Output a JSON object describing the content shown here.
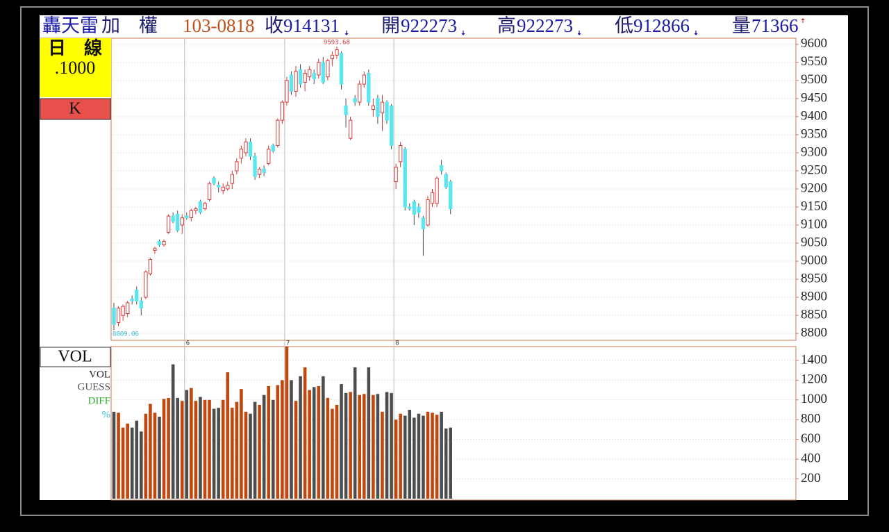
{
  "header": {
    "name": "轟天雷",
    "index": "加　權",
    "date": "103-0818",
    "close_label": "收",
    "close": "914131",
    "open_label": "開",
    "open": "922273",
    "high_label": "高",
    "high": "922273",
    "low_label": "低",
    "low": "912866",
    "volume_label": "量",
    "volume": "71366"
  },
  "side_panel": {
    "period": "日　線",
    "scale": ".1000",
    "mode": "K",
    "vol_title": "VOL",
    "vol_items": [
      "VOL",
      "GUESS",
      "DIFF",
      "%"
    ]
  },
  "chart_data": [
    {
      "type": "candlestick",
      "up_color": "#d63c3c",
      "down_color": "#5ce6f0",
      "categories": [
        null,
        null,
        null,
        null,
        null,
        null,
        null,
        null,
        null,
        null,
        null,
        null,
        null,
        null,
        null,
        null,
        "6",
        null,
        null,
        null,
        null,
        null,
        null,
        null,
        null,
        null,
        null,
        null,
        null,
        null,
        null,
        null,
        null,
        null,
        null,
        null,
        null,
        null,
        "7",
        null,
        null,
        null,
        null,
        null,
        null,
        null,
        null,
        null,
        null,
        null,
        null,
        null,
        null,
        null,
        null,
        null,
        null,
        null,
        null,
        null,
        null,
        null,
        "8",
        null,
        null,
        null,
        null,
        null,
        null,
        null,
        null,
        null,
        null,
        null,
        null
      ],
      "open": [
        8870,
        8830,
        8850,
        8855,
        8895,
        8920,
        8890,
        8900,
        8965,
        9030,
        9055,
        9045,
        9080,
        9125,
        9130,
        9100,
        9125,
        9120,
        9140,
        9165,
        9145,
        9170,
        9230,
        9210,
        9195,
        9200,
        9215,
        9250,
        9285,
        9300,
        9330,
        9290,
        9240,
        9255,
        9270,
        9320,
        9320,
        9390,
        9440,
        9515,
        9470,
        9530,
        9495,
        9510,
        9520,
        9515,
        9550,
        9510,
        9560,
        9570,
        9575,
        9430,
        9340,
        9450,
        9440,
        9490,
        9520,
        9420,
        9450,
        9410,
        9440,
        9430,
        9220,
        9275,
        9310,
        9150,
        9165,
        9150,
        9120,
        9100,
        9160,
        9160,
        9265,
        9240,
        9220
      ],
      "high": [
        8885,
        8875,
        8880,
        8890,
        8905,
        8930,
        8900,
        8975,
        9010,
        9040,
        9060,
        9060,
        9130,
        9135,
        9140,
        9130,
        9135,
        9145,
        9150,
        9170,
        9165,
        9220,
        9235,
        9220,
        9215,
        9220,
        9250,
        9285,
        9320,
        9340,
        9340,
        9300,
        9260,
        9265,
        9320,
        9325,
        9395,
        9445,
        9510,
        9525,
        9540,
        9545,
        9530,
        9540,
        9530,
        9560,
        9565,
        9560,
        9580,
        9593.68,
        9580,
        9450,
        9400,
        9460,
        9500,
        9525,
        9530,
        9450,
        9460,
        9460,
        9445,
        9435,
        9270,
        9330,
        9315,
        9160,
        9170,
        9160,
        9125,
        9180,
        9200,
        9235,
        9280,
        9245,
        9225
      ],
      "low": [
        8809.06,
        8820,
        8835,
        8845,
        8880,
        8880,
        8850,
        8895,
        8960,
        9020,
        9040,
        9040,
        9075,
        9105,
        9080,
        9075,
        9115,
        9110,
        9130,
        9130,
        9140,
        9165,
        9210,
        9190,
        9185,
        9195,
        9200,
        9240,
        9270,
        9290,
        9280,
        9225,
        9230,
        9235,
        9265,
        9300,
        9315,
        9380,
        9430,
        9460,
        9455,
        9480,
        9470,
        9500,
        9490,
        9505,
        9490,
        9500,
        9540,
        9560,
        9475,
        9370,
        9335,
        9430,
        9430,
        9480,
        9430,
        9400,
        9380,
        9360,
        9380,
        9310,
        9200,
        9260,
        9140,
        9140,
        9100,
        9120,
        9015,
        9095,
        9150,
        9150,
        9240,
        9200,
        9130
      ],
      "close": [
        8825,
        8870,
        8875,
        8885,
        8890,
        8890,
        8870,
        8970,
        9005,
        9035,
        9045,
        9055,
        9125,
        9110,
        9085,
        9120,
        9120,
        9140,
        9145,
        9135,
        9160,
        9215,
        9215,
        9205,
        9205,
        9210,
        9240,
        9275,
        9310,
        9330,
        9290,
        9235,
        9255,
        9245,
        9310,
        9305,
        9390,
        9440,
        9500,
        9470,
        9525,
        9490,
        9520,
        9530,
        9505,
        9550,
        9495,
        9555,
        9570,
        9585,
        9490,
        9405,
        9390,
        9440,
        9490,
        9515,
        9440,
        9430,
        9400,
        9440,
        9390,
        9320,
        9260,
        9320,
        9150,
        9145,
        9130,
        9135,
        9090,
        9170,
        9190,
        9230,
        9250,
        9205,
        9145
      ],
      "ylim": [
        8781,
        9617
      ],
      "yticks": [
        8800,
        8850,
        8900,
        8950,
        9000,
        9050,
        9100,
        9150,
        9200,
        9250,
        9300,
        9350,
        9400,
        9450,
        9500,
        9550,
        9600
      ],
      "grid": true
    },
    {
      "type": "bar",
      "up_color": "#c0480e",
      "down_color": "#4d4d4d",
      "values": [
        880,
        870,
        720,
        760,
        720,
        790,
        680,
        860,
        960,
        870,
        830,
        1010,
        1020,
        1360,
        1020,
        990,
        1100,
        1120,
        990,
        1030,
        1000,
        1000,
        910,
        920,
        1000,
        1280,
        920,
        980,
        1110,
        880,
        860,
        980,
        950,
        1050,
        1140,
        1000,
        1150,
        1200,
        1540,
        1200,
        990,
        1240,
        1330,
        1100,
        1130,
        1140,
        1240,
        1020,
        910,
        950,
        1160,
        1070,
        1080,
        1330,
        1050,
        1060,
        1330,
        1050,
        1060,
        880,
        1080,
        1070,
        800,
        860,
        840,
        900,
        820,
        860,
        840,
        880,
        870,
        850,
        880,
        710,
        720
      ],
      "ylim": [
        0,
        1540
      ],
      "yticks": [
        200,
        400,
        600,
        800,
        1000,
        1200,
        1400
      ],
      "grid": true
    }
  ]
}
